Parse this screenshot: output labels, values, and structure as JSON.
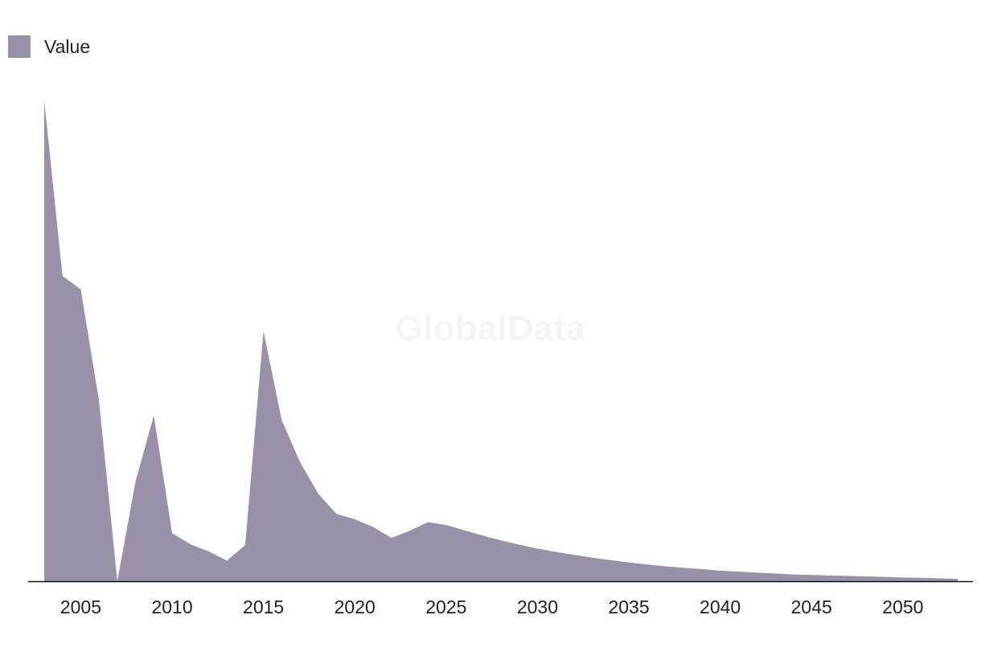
{
  "chart_data": {
    "type": "area",
    "series": [
      {
        "name": "Value",
        "color": "#9a91a8",
        "x": [
          2003,
          2004,
          2005,
          2006,
          2007,
          2008,
          2009,
          2010,
          2011,
          2012,
          2013,
          2014,
          2015,
          2016,
          2017,
          2018,
          2019,
          2020,
          2021,
          2022,
          2023,
          2024,
          2025,
          2026,
          2027,
          2028,
          2029,
          2030,
          2031,
          2032,
          2033,
          2034,
          2035,
          2036,
          2037,
          2038,
          2039,
          2040,
          2041,
          2042,
          2043,
          2044,
          2045,
          2046,
          2047,
          2048,
          2049,
          2050,
          2051,
          2052,
          2053
        ],
        "values": [
          100,
          63.5,
          60.7,
          37.5,
          0,
          20.8,
          34.5,
          10,
          7.7,
          6.2,
          4.3,
          7.5,
          52,
          33.5,
          24.8,
          18.2,
          14,
          12.9,
          11.3,
          9,
          10.5,
          12.3,
          11.7,
          10.6,
          9.5,
          8.5,
          7.6,
          6.8,
          6.1,
          5.5,
          4.9,
          4.4,
          3.9,
          3.5,
          3.1,
          2.8,
          2.5,
          2.2,
          2,
          1.8,
          1.6,
          1.4,
          1.3,
          1.2,
          1.1,
          1,
          0.9,
          0.8,
          0.7,
          0.6,
          0.5
        ]
      }
    ],
    "x_ticks": [
      "2005",
      "2010",
      "2015",
      "2020",
      "2025",
      "2030",
      "2035",
      "2040",
      "2045",
      "2050"
    ],
    "xlim": [
      2003,
      2053
    ],
    "ylim": [
      0,
      100
    ],
    "grid": false,
    "legend": "top-left",
    "title": "",
    "xlabel": "",
    "ylabel": ""
  },
  "legend": {
    "label": "Value"
  },
  "watermark": "GlobalData",
  "colors": {
    "area": "#9a91a8",
    "axis": "#111111",
    "text": "#222222"
  }
}
